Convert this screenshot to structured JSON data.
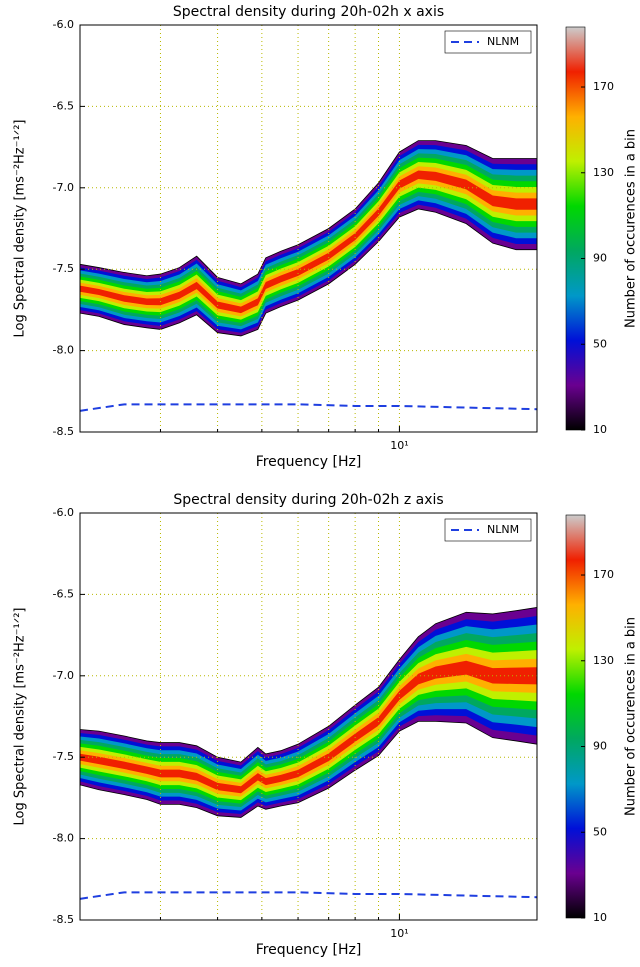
{
  "chart_data": [
    {
      "type": "density",
      "title": "Spectral density during 20h-02h x axis",
      "xlabel": "Frequency [Hz]",
      "ylabel": "Log Spectral density [ms⁻²Hz⁻¹ᐟ²]",
      "xscale": "log",
      "xlim": [
        2,
        20
      ],
      "xticks": [
        {
          "value": 10,
          "label": "10¹"
        }
      ],
      "xminor": [
        3,
        4,
        5,
        6,
        7,
        8,
        9
      ],
      "ylim": [
        -8.5,
        -6.0
      ],
      "yticks": [
        -8.5,
        {
          "value": -8.0,
          "label": "-8.0"
        },
        -7.5,
        {
          "value": -7.0,
          "label": "-7.0"
        },
        -6.5,
        {
          "value": -6.0,
          "label": "-6.0"
        }
      ],
      "grid": true,
      "legend": "upper right",
      "x": [
        2,
        2.5,
        3,
        4,
        5,
        6,
        8,
        10,
        14,
        20
      ],
      "series": [
        {
          "name": "NLNM",
          "color": "#1f3fe0",
          "values": [
            -8.37,
            -8.33,
            -8.33,
            -8.33,
            -8.33,
            -8.33,
            -8.34,
            -8.34,
            -8.35,
            -8.36
          ]
        }
      ],
      "density": {
        "x": [
          2,
          2.2,
          2.5,
          2.8,
          3,
          3.3,
          3.6,
          4,
          4.5,
          4.9,
          5.1,
          5.5,
          6,
          7,
          8,
          9,
          10,
          11,
          12,
          14,
          16,
          18,
          20
        ],
        "center": [
          -7.62,
          -7.64,
          -7.68,
          -7.7,
          -7.7,
          -7.66,
          -7.6,
          -7.72,
          -7.75,
          -7.7,
          -7.6,
          -7.56,
          -7.52,
          -7.42,
          -7.3,
          -7.15,
          -6.98,
          -6.92,
          -6.93,
          -6.98,
          -7.08,
          -7.1,
          -7.1
        ],
        "spread": [
          0.15,
          0.15,
          0.16,
          0.16,
          0.17,
          0.17,
          0.18,
          0.17,
          0.16,
          0.17,
          0.17,
          0.17,
          0.17,
          0.17,
          0.17,
          0.18,
          0.2,
          0.21,
          0.22,
          0.24,
          0.26,
          0.28,
          0.28
        ]
      },
      "colorbar": {
        "label": "Number of occurences in a bin",
        "clim": [
          10,
          198
        ],
        "ticks": [
          10,
          50,
          90,
          130,
          170
        ],
        "colormap": [
          "#000000",
          "#6a0090",
          "#0010d8",
          "#0098c8",
          "#00a860",
          "#00d800",
          "#bff000",
          "#ffb000",
          "#f02000",
          "#cccccc"
        ]
      }
    },
    {
      "type": "density",
      "title": "Spectral density during 20h-02h z axis",
      "xlabel": "Frequency [Hz]",
      "ylabel": "Log Spectral density [ms⁻²Hz⁻¹ᐟ²]",
      "xscale": "log",
      "xlim": [
        2,
        20
      ],
      "xticks": [
        {
          "value": 10,
          "label": "10¹"
        }
      ],
      "xminor": [
        3,
        4,
        5,
        6,
        7,
        8,
        9
      ],
      "ylim": [
        -8.5,
        -6.0
      ],
      "yticks": [
        -8.5,
        {
          "value": -8.0,
          "label": "-8.0"
        },
        -7.5,
        {
          "value": -7.0,
          "label": "-7.0"
        },
        -6.5,
        {
          "value": -6.0,
          "label": "-6.0"
        }
      ],
      "grid": true,
      "legend": "upper right",
      "x": [
        2,
        2.5,
        3,
        4,
        5,
        6,
        8,
        10,
        14,
        20
      ],
      "series": [
        {
          "name": "NLNM",
          "color": "#1f3fe0",
          "values": [
            -8.37,
            -8.33,
            -8.33,
            -8.33,
            -8.33,
            -8.33,
            -8.34,
            -8.34,
            -8.35,
            -8.36
          ]
        }
      ],
      "density": {
        "x": [
          2,
          2.2,
          2.5,
          2.8,
          3,
          3.3,
          3.6,
          4,
          4.5,
          4.9,
          5.1,
          5.5,
          6,
          7,
          8,
          9,
          10,
          11,
          12,
          14,
          16,
          18,
          20
        ],
        "center": [
          -7.5,
          -7.52,
          -7.55,
          -7.58,
          -7.6,
          -7.6,
          -7.62,
          -7.68,
          -7.7,
          -7.62,
          -7.65,
          -7.63,
          -7.6,
          -7.5,
          -7.38,
          -7.28,
          -7.12,
          -7.02,
          -6.98,
          -6.95,
          -7.0,
          -7.0,
          -7.0
        ],
        "spread": [
          0.17,
          0.18,
          0.18,
          0.18,
          0.19,
          0.19,
          0.19,
          0.18,
          0.17,
          0.18,
          0.17,
          0.17,
          0.18,
          0.19,
          0.2,
          0.21,
          0.22,
          0.26,
          0.3,
          0.34,
          0.38,
          0.4,
          0.42
        ]
      },
      "colorbar": {
        "label": "Number of occurences in a bin",
        "clim": [
          10,
          198
        ],
        "ticks": [
          10,
          50,
          90,
          130,
          170
        ],
        "colormap": [
          "#000000",
          "#6a0090",
          "#0010d8",
          "#0098c8",
          "#00a860",
          "#00d800",
          "#bff000",
          "#ffb000",
          "#f02000",
          "#cccccc"
        ]
      }
    }
  ]
}
